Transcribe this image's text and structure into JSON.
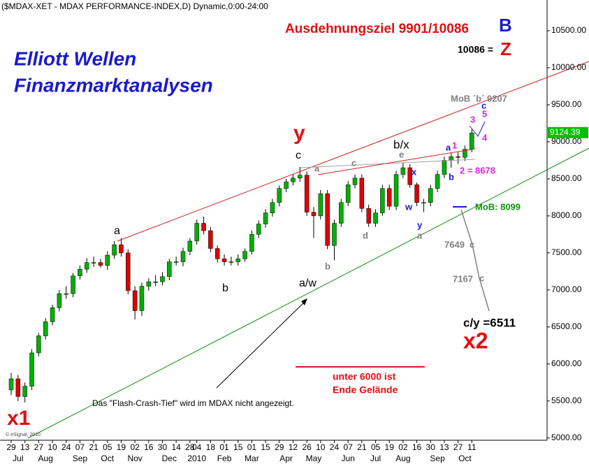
{
  "chart_data": {
    "type": "candlestick",
    "title": "($MDAX-XET - MDAX PERFORMANCE-INDEX,D) Dynamic,0:00-24:00",
    "categories": [
      "29",
      null,
      "13",
      null,
      "27",
      null,
      "10",
      null,
      "24",
      null,
      "07",
      null,
      "21",
      null,
      "05",
      null,
      "19",
      null,
      "02",
      null,
      "16",
      null,
      "30",
      null,
      "14",
      null,
      "28",
      "04",
      null,
      "18",
      null,
      "01",
      null,
      "15",
      null,
      "01",
      null,
      "15",
      null,
      "29",
      null,
      "12",
      null,
      "26",
      null,
      "10",
      null,
      "24",
      null,
      "07",
      null,
      "21",
      null,
      "05",
      null,
      "19",
      null,
      "02",
      null,
      "16",
      null,
      "30",
      null,
      "13",
      null,
      "27",
      null,
      "11",
      null
    ],
    "months": [
      null,
      "Jul",
      null,
      null,
      null,
      "Aug",
      null,
      null,
      null,
      null,
      "Sep",
      null,
      null,
      null,
      "Oct",
      null,
      null,
      null,
      "Nov",
      null,
      null,
      null,
      null,
      "Dec",
      null,
      null,
      null,
      "2010",
      null,
      null,
      null,
      "Feb",
      null,
      null,
      null,
      "Mar",
      null,
      null,
      null,
      null,
      "Apr",
      null,
      null,
      null,
      "May",
      null,
      null,
      null,
      null,
      "Jun",
      null,
      null,
      null,
      "Jul",
      null,
      null,
      null,
      "Aug",
      null,
      null,
      null,
      null,
      "Sep",
      null,
      null,
      null,
      "Oct",
      null
    ],
    "open": [
      5650,
      5800,
      5560,
      5700,
      6150,
      6380,
      6570,
      6760,
      6950,
      6950,
      7190,
      7280,
      7370,
      7370,
      7330,
      7470,
      7610,
      7500,
      6990,
      6720,
      7050,
      7110,
      7110,
      7180,
      7380,
      7380,
      7520,
      7660,
      7900,
      7800,
      7560,
      7420,
      7380,
      7380,
      7420,
      7520,
      7750,
      7890,
      8040,
      8180,
      8370,
      8460,
      8510,
      8550,
      8050,
      8000,
      8300,
      7600,
      7900,
      8180,
      8420,
      8510,
      8100,
      7900,
      8040,
      8370,
      8130,
      8560,
      8650,
      8420,
      8180,
      8180,
      8370,
      8560,
      8750,
      8800,
      8790,
      8900
    ],
    "high": [
      5880,
      5850,
      5750,
      6200,
      6420,
      6620,
      6800,
      7000,
      7050,
      7230,
      7330,
      7430,
      7450,
      7420,
      7520,
      7660,
      7700,
      7550,
      7050,
      7100,
      7160,
      7200,
      7240,
      7420,
      7450,
      7570,
      7700,
      7950,
      7990,
      7850,
      7600,
      7480,
      7450,
      7480,
      7560,
      7800,
      7940,
      8090,
      8230,
      8410,
      8500,
      8560,
      8660,
      8600,
      8120,
      8350,
      8350,
      7950,
      8230,
      8470,
      8560,
      8560,
      8150,
      8090,
      8420,
      8420,
      8610,
      8720,
      8700,
      8450,
      8230,
      8420,
      8610,
      8800,
      8850,
      8860,
      8950,
      9170
    ],
    "low": [
      5580,
      5500,
      5480,
      5650,
      6100,
      6330,
      6520,
      6710,
      6880,
      6900,
      7140,
      7230,
      7310,
      7300,
      7270,
      7420,
      7450,
      6940,
      6600,
      6650,
      6990,
      7050,
      7060,
      7130,
      7330,
      7320,
      7470,
      7610,
      7750,
      7510,
      7370,
      7330,
      7330,
      7330,
      7380,
      7480,
      7700,
      7840,
      7990,
      8130,
      8320,
      8410,
      8460,
      8000,
      7700,
      7950,
      7550,
      7400,
      7850,
      8130,
      8370,
      8050,
      7850,
      7850,
      8000,
      8080,
      8080,
      8510,
      8380,
      8130,
      8050,
      8130,
      8320,
      8510,
      8650,
      8700,
      8740,
      8860
    ],
    "close": [
      5800,
      5560,
      5700,
      6150,
      6380,
      6570,
      6760,
      6950,
      6950,
      7190,
      7280,
      7370,
      7370,
      7330,
      7470,
      7610,
      7500,
      6990,
      6720,
      7050,
      7110,
      7110,
      7180,
      7380,
      7380,
      7520,
      7660,
      7900,
      7800,
      7560,
      7420,
      7380,
      7380,
      7420,
      7520,
      7750,
      7890,
      8040,
      8180,
      8370,
      8460,
      8510,
      8550,
      8050,
      8000,
      8300,
      7600,
      7900,
      8180,
      8420,
      8510,
      8100,
      7900,
      8040,
      8370,
      8130,
      8560,
      8650,
      8420,
      8180,
      8180,
      8370,
      8560,
      8750,
      8800,
      8790,
      8900,
      9120
    ],
    "up_color": "#00b000",
    "down_color": "#e00000",
    "ylim": [
      4970,
      10915
    ],
    "yticks": [
      {
        "value": 5000,
        "label": "5000.00"
      },
      {
        "value": 5500,
        "label": "5500.00"
      },
      {
        "value": 6000,
        "label": "6000.00"
      },
      {
        "value": 6500,
        "label": "6500.00"
      },
      {
        "value": 7000,
        "label": "7000.00"
      },
      {
        "value": 7500,
        "label": "7500.00"
      },
      {
        "value": 8000,
        "label": "8000.00"
      },
      {
        "value": 8500,
        "label": "8500.00"
      },
      {
        "value": 9000,
        "label": "9000.00"
      },
      {
        "value": 9500,
        "label": "9500.00"
      },
      {
        "value": 10000,
        "label": "10000.00"
      },
      {
        "value": 10500,
        "label": "10500.00"
      }
    ],
    "last_value": 9124.39,
    "annotations": [
      "Elliott Wellen",
      "Finanzmarktanalysen",
      "Ausdehnungsziel 9901/10086",
      "B",
      "10086 =",
      "Z",
      "MoB ´b´ 9207",
      "y",
      "c",
      "b/x",
      "a",
      "b",
      "a/w",
      "a",
      "c",
      "e",
      "d",
      "b",
      "x",
      "w",
      "y",
      "a",
      "a",
      "1",
      "3",
      "5",
      "4",
      "c",
      "b",
      "2 = 8678",
      "MoB: 8099",
      "7649",
      "c",
      "7167",
      "c",
      "c/y =6511",
      "x2",
      "unter 6000 ist",
      "Ende Gelände",
      "Das \"Flash-Crash-Tief\" wird im MDAX nicht angezeigt.",
      "x1",
      "© eSignal, 2010"
    ]
  }
}
